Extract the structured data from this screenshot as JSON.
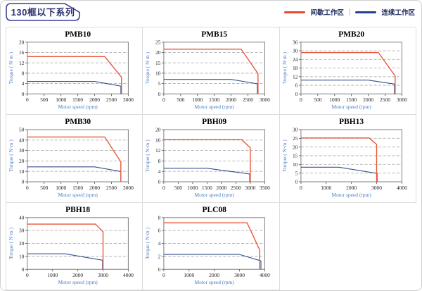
{
  "header": {
    "title": "130框以下系列",
    "legend": [
      {
        "label": "间歇工作区",
        "color": "#e8492a"
      },
      {
        "label": "连续工作区",
        "color": "#24418e"
      }
    ],
    "legend_separator": "|"
  },
  "colors": {
    "curve_red": "#e8573a",
    "curve_blue": "#35508e",
    "title_navy": "#29306f",
    "tag_border": "#3b3f94",
    "cell_border": "#dddddd",
    "plot_border": "#7f7f7f",
    "gridline": "#b0b0b0",
    "axis_label_blue": "#4a7cc7"
  },
  "chart_data": [
    {
      "type": "line",
      "title": "PMB10",
      "xlabel": "Motor speed (rpm)",
      "ylabel": "Torque ( N·m )",
      "xlim": [
        0,
        3000
      ],
      "ylim": [
        0,
        20
      ],
      "xticks": [
        0,
        500,
        1000,
        1500,
        2000,
        2500,
        3000
      ],
      "yticks": [
        0,
        4,
        8,
        12,
        16,
        20
      ],
      "grid": "horizontal-dashed",
      "series": [
        {
          "name": "间歇工作区",
          "color": "red",
          "points": [
            [
              0,
              14.4
            ],
            [
              2300,
              14.4
            ],
            [
              2800,
              6.4
            ],
            [
              2800,
              0
            ]
          ]
        },
        {
          "name": "连续工作区",
          "color": "blue",
          "points": [
            [
              0,
              4.8
            ],
            [
              2000,
              4.8
            ],
            [
              2780,
              3.0
            ],
            [
              2780,
              0
            ]
          ]
        }
      ]
    },
    {
      "type": "line",
      "title": "PMB15",
      "xlabel": "Motor speed (rpm)",
      "ylabel": "Torque ( N·m )",
      "xlim": [
        0,
        3000
      ],
      "ylim": [
        0,
        25
      ],
      "xticks": [
        0,
        500,
        1000,
        1500,
        2000,
        2500,
        3000
      ],
      "yticks": [
        0,
        5,
        10,
        15,
        20,
        25
      ],
      "grid": "horizontal-dashed",
      "series": [
        {
          "name": "间歇工作区",
          "color": "red",
          "points": [
            [
              0,
              21.6
            ],
            [
              2300,
              21.6
            ],
            [
              2800,
              9.8
            ],
            [
              2800,
              0
            ]
          ]
        },
        {
          "name": "连续工作区",
          "color": "blue",
          "points": [
            [
              0,
              7.0
            ],
            [
              2000,
              7.0
            ],
            [
              2780,
              4.9
            ],
            [
              2780,
              0
            ]
          ]
        }
      ]
    },
    {
      "type": "line",
      "title": "PMB20",
      "xlabel": "Motor speed (rpm)",
      "ylabel": "Torque ( N·m )",
      "xlim": [
        0,
        3000
      ],
      "ylim": [
        0,
        36
      ],
      "xticks": [
        0,
        500,
        1000,
        1500,
        2000,
        2500,
        3000
      ],
      "yticks": [
        0,
        6,
        12,
        18,
        24,
        30,
        36
      ],
      "grid": "horizontal-dashed",
      "series": [
        {
          "name": "间歇工作区",
          "color": "red",
          "points": [
            [
              0,
              28.8
            ],
            [
              2300,
              28.8
            ],
            [
              2800,
              12.5
            ],
            [
              2800,
              0
            ]
          ]
        },
        {
          "name": "连续工作区",
          "color": "blue",
          "points": [
            [
              0,
              9.6
            ],
            [
              2000,
              9.6
            ],
            [
              2780,
              6.8
            ],
            [
              2780,
              0
            ]
          ]
        }
      ]
    },
    {
      "type": "line",
      "title": "PMB30",
      "xlabel": "Motor speed (rpm)",
      "ylabel": "Torque ( N·m )",
      "xlim": [
        0,
        3000
      ],
      "ylim": [
        0,
        50
      ],
      "xticks": [
        0,
        500,
        1000,
        1500,
        2000,
        2500,
        3000
      ],
      "yticks": [
        0,
        10,
        20,
        30,
        40,
        50
      ],
      "grid": "horizontal-dashed",
      "series": [
        {
          "name": "间歇工作区",
          "color": "red",
          "points": [
            [
              0,
              43
            ],
            [
              2300,
              43
            ],
            [
              2780,
              19
            ],
            [
              2780,
              0
            ]
          ]
        },
        {
          "name": "连续工作区",
          "color": "blue",
          "points": [
            [
              0,
              14.3
            ],
            [
              2000,
              14.3
            ],
            [
              2750,
              10
            ],
            [
              2780,
              10
            ],
            [
              2780,
              0
            ]
          ]
        }
      ]
    },
    {
      "type": "line",
      "title": "PBH09",
      "xlabel": "Motor speed (rpm)",
      "ylabel": "Torque ( N·m )",
      "xlim": [
        0,
        3500
      ],
      "ylim": [
        0,
        20
      ],
      "xticks": [
        0,
        500,
        1000,
        1500,
        2000,
        2500,
        3000,
        3500
      ],
      "yticks": [
        0,
        4,
        8,
        12,
        16,
        20
      ],
      "grid": "horizontal-dashed",
      "series": [
        {
          "name": "间歇工作区",
          "color": "red",
          "points": [
            [
              0,
              16.2
            ],
            [
              2700,
              16.2
            ],
            [
              3000,
              13
            ],
            [
              3000,
              0
            ]
          ]
        },
        {
          "name": "连续工作区",
          "color": "blue",
          "points": [
            [
              0,
              5.2
            ],
            [
              1500,
              5.2
            ],
            [
              2980,
              3.0
            ],
            [
              2980,
              0
            ]
          ]
        }
      ]
    },
    {
      "type": "line",
      "title": "PBH13",
      "xlabel": "Motor speed (rpm)",
      "ylabel": "Torque ( N·m )",
      "xlim": [
        0,
        4000
      ],
      "ylim": [
        0,
        30
      ],
      "xticks": [
        0,
        1000,
        2000,
        3000,
        4000
      ],
      "yticks": [
        0,
        5,
        10,
        15,
        20,
        25,
        30
      ],
      "grid": "horizontal-dashed",
      "series": [
        {
          "name": "间歇工作区",
          "color": "red",
          "points": [
            [
              0,
              25.2
            ],
            [
              2700,
              25.2
            ],
            [
              3000,
              21.5
            ],
            [
              3000,
              0
            ]
          ]
        },
        {
          "name": "连续工作区",
          "color": "blue",
          "points": [
            [
              0,
              8.4
            ],
            [
              1500,
              8.4
            ],
            [
              2950,
              5.0
            ],
            [
              3020,
              5.0
            ],
            [
              3020,
              0
            ]
          ]
        }
      ]
    },
    {
      "type": "line",
      "title": "PBH18",
      "xlabel": "Motor speed (rpm)",
      "ylabel": "Torque ( N·m )",
      "xlim": [
        0,
        4000
      ],
      "ylim": [
        0,
        40
      ],
      "xticks": [
        0,
        1000,
        2000,
        3000,
        4000
      ],
      "yticks": [
        0,
        10,
        20,
        30,
        40
      ],
      "grid": "horizontal-dashed",
      "series": [
        {
          "name": "间歇工作区",
          "color": "red",
          "points": [
            [
              0,
              35
            ],
            [
              2700,
              35
            ],
            [
              3000,
              29
            ],
            [
              3000,
              0
            ]
          ]
        },
        {
          "name": "连续工作区",
          "color": "blue",
          "points": [
            [
              0,
              12
            ],
            [
              1500,
              12
            ],
            [
              2980,
              7
            ],
            [
              2980,
              0
            ]
          ]
        }
      ]
    },
    {
      "type": "line",
      "title": "PLC08",
      "xlabel": "Motor speed (rpm)",
      "ylabel": "Torque ( N·m )",
      "xlim": [
        0,
        4000
      ],
      "ylim": [
        0,
        8
      ],
      "xticks": [
        0,
        1000,
        2000,
        3000,
        4000
      ],
      "yticks": [
        0,
        2,
        4,
        6,
        8
      ],
      "grid": "horizontal-dashed",
      "series": [
        {
          "name": "间歇工作区",
          "color": "red",
          "points": [
            [
              0,
              7.2
            ],
            [
              3300,
              7.2
            ],
            [
              3800,
              3.0
            ],
            [
              3800,
              0
            ]
          ]
        },
        {
          "name": "连续工作区",
          "color": "blue",
          "points": [
            [
              0,
              2.3
            ],
            [
              3000,
              2.3
            ],
            [
              3850,
              1.3
            ],
            [
              3850,
              0
            ]
          ]
        }
      ]
    }
  ]
}
